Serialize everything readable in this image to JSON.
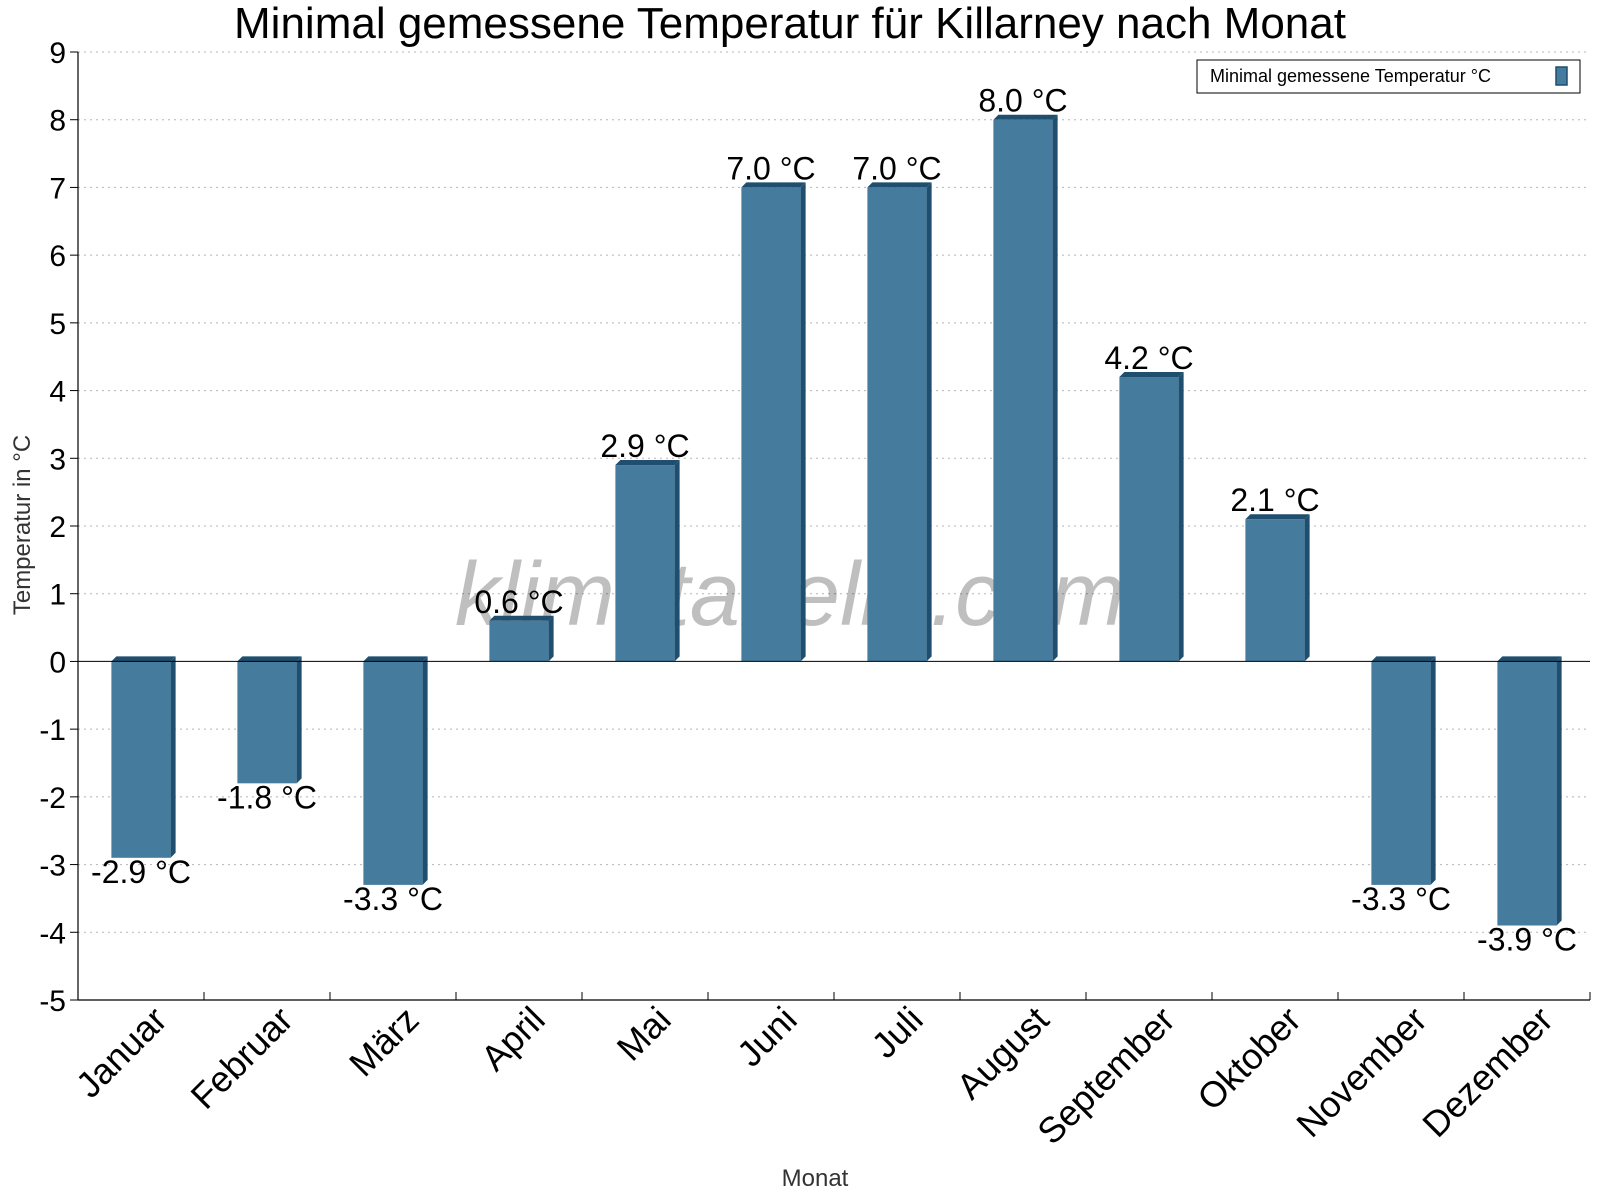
{
  "chart_data": {
    "type": "bar",
    "title": "Minimal gemessene Temperatur für Killarney nach Monat",
    "xlabel": "Monat",
    "ylabel": "Temperatur in °C",
    "ylim": [
      -5,
      9
    ],
    "yticks": [
      "-5",
      "-4",
      "-3",
      "-2",
      "-1",
      "0",
      "1",
      "2",
      "3",
      "4",
      "5",
      "6",
      "7",
      "8",
      "9"
    ],
    "grid": true,
    "legend_position": "top-right",
    "categories": [
      "Januar",
      "Februar",
      "März",
      "April",
      "Mai",
      "Juni",
      "Juli",
      "August",
      "September",
      "Oktober",
      "November",
      "Dezember"
    ],
    "series": [
      {
        "name": "Minimal gemessene Temperatur °C",
        "values": [
          -2.9,
          -1.8,
          -3.3,
          0.6,
          2.9,
          7.0,
          7.0,
          8.0,
          4.2,
          2.1,
          -3.3,
          -3.9
        ],
        "labels": [
          "-2.9 °C",
          "-1.8 °C",
          "-3.3 °C",
          "0.6 °C",
          "2.9 °C",
          "7.0 °C",
          "7.0 °C",
          "8.0 °C",
          "4.2 °C",
          "2.1 °C",
          "-3.3 °C",
          "-3.9 °C"
        ],
        "color": "#457b9d",
        "edge_color": "#1f4e6e"
      }
    ],
    "watermark": "klimatabelle.com"
  }
}
